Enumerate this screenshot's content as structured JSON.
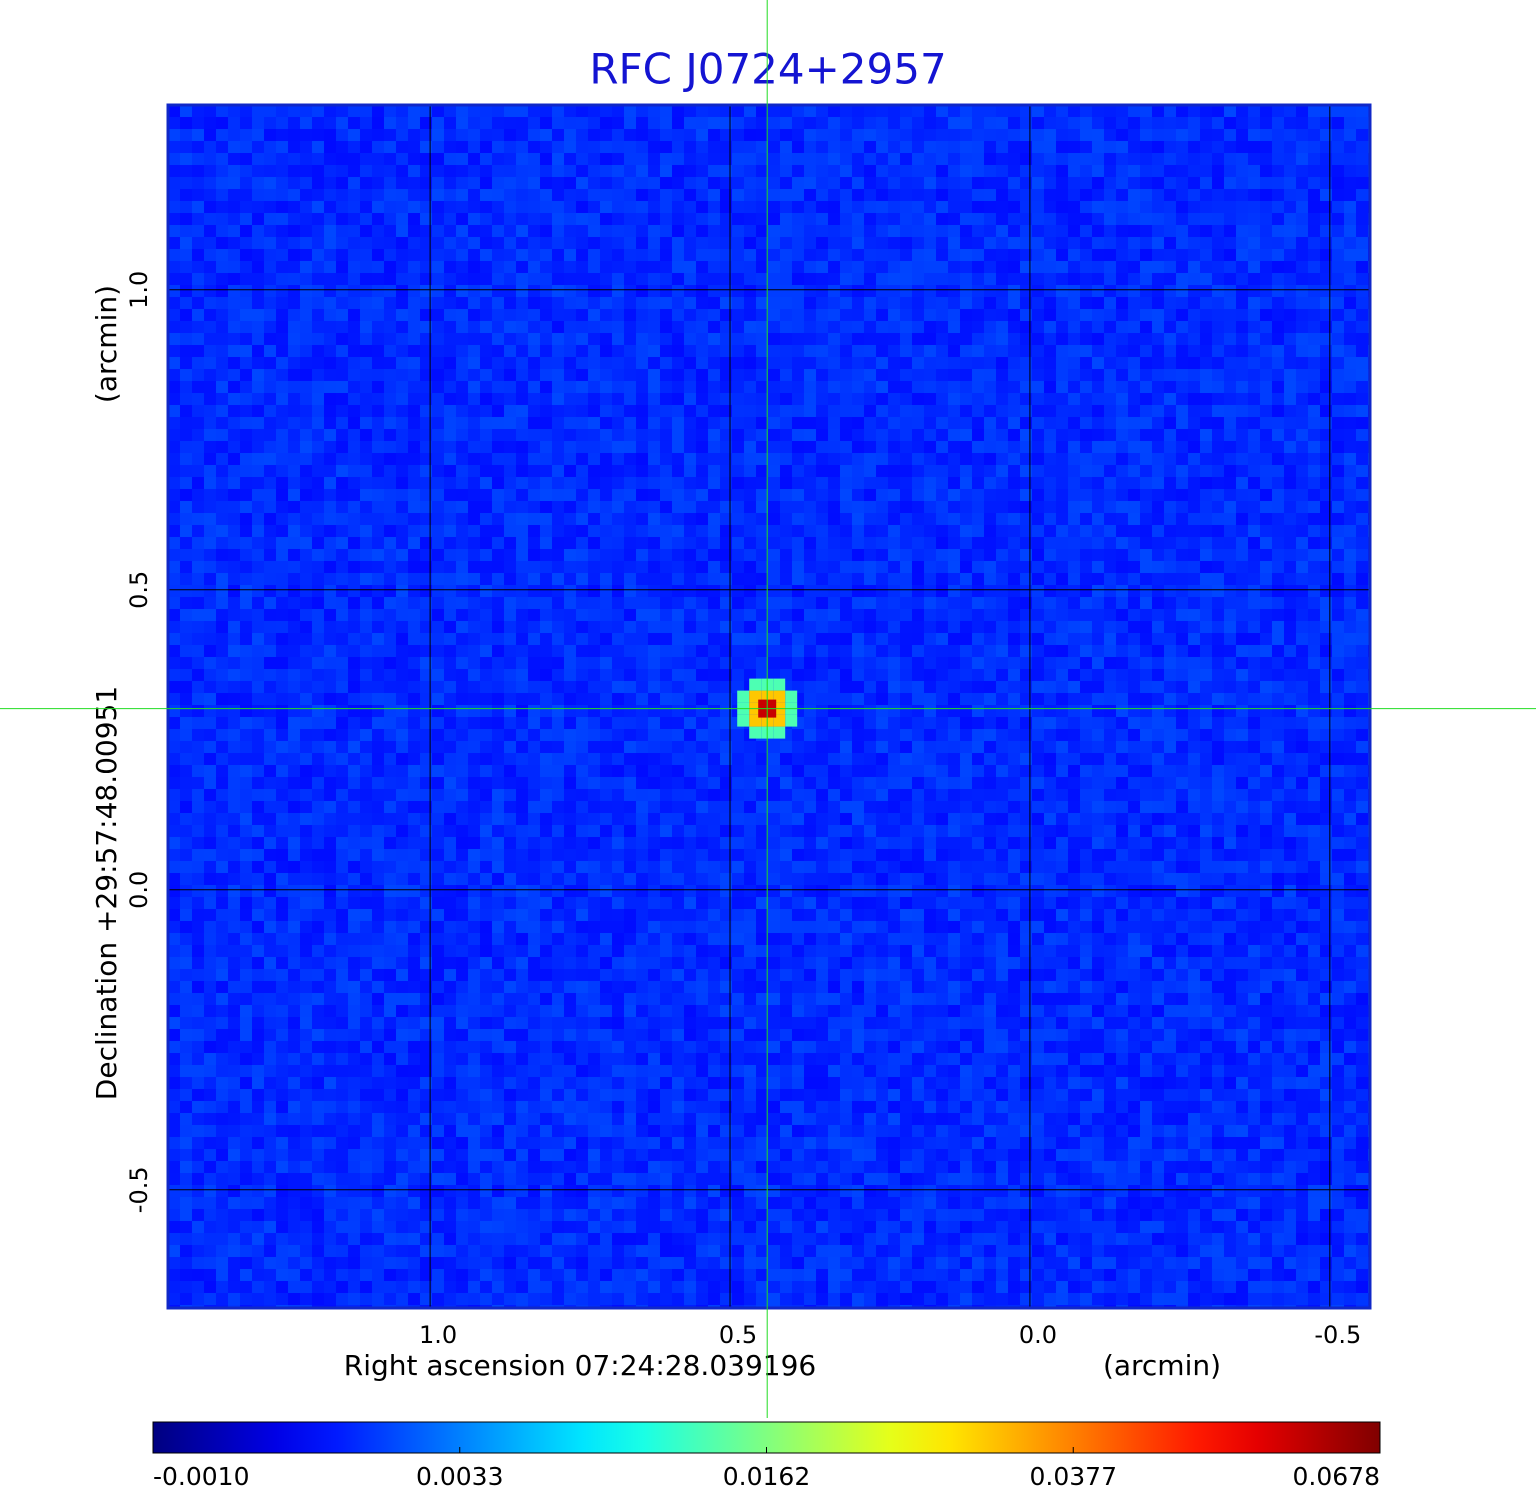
{
  "chart_data": {
    "type": "image",
    "title": "RFC J0724+2957",
    "xlabel": "Right ascension  07:24:28.039196",
    "xunit": "(arcmin)",
    "ylabel": "Declination  +29:57:48.00951",
    "yunit": "(arcmin)",
    "xlim": [
      1.437,
      -0.567
    ],
    "ylim": [
      -0.697,
      1.308
    ],
    "xticks": [
      {
        "value": 1,
        "label": "1.0"
      },
      0.5,
      {
        "value": 0,
        "label": "0.0"
      },
      -0.5
    ],
    "yticks": [
      {
        "value": 1,
        "label": "1.0"
      },
      0.5,
      {
        "value": 0,
        "label": "0.0"
      },
      -0.5
    ],
    "grid": true,
    "source": {
      "x": 0.438,
      "y": 0.302,
      "peak": 0.0678
    },
    "colorbar": {
      "colormap": "jet",
      "stretch": "sqrt",
      "lim": [
        -0.001,
        0.0678
      ],
      "ticks": [
        {
          "value": -0.001,
          "label": "-0.0010"
        },
        0.0033,
        0.0162,
        0.0377,
        0.0678
      ]
    }
  }
}
